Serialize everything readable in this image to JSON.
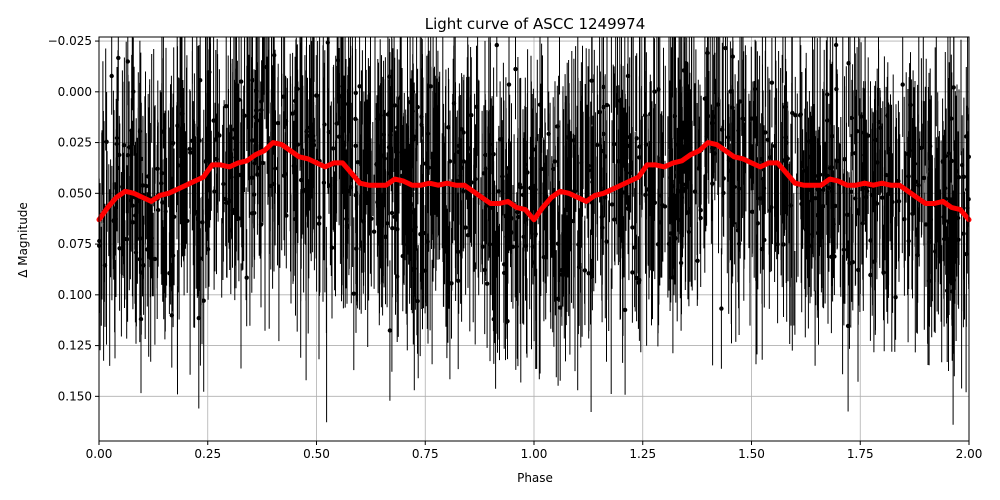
{
  "chart_data": {
    "type": "scatter",
    "title": "Light curve of ASCC 1249974",
    "xlabel": "Phase",
    "ylabel": "Δ Magnitude",
    "xlim": [
      0.0,
      2.0
    ],
    "ylim": [
      0.172,
      -0.027
    ],
    "y_inverted": true,
    "grid": true,
    "x_ticks": [
      "0.00",
      "0.25",
      "0.50",
      "0.75",
      "1.00",
      "1.25",
      "1.50",
      "1.75",
      "2.00"
    ],
    "x_tick_values": [
      0.0,
      0.25,
      0.5,
      0.75,
      1.0,
      1.25,
      1.5,
      1.75,
      2.0
    ],
    "y_ticks": [
      "−0.025",
      "0.000",
      "0.025",
      "0.050",
      "0.075",
      "0.100",
      "0.125",
      "0.150"
    ],
    "y_tick_values": [
      -0.025,
      0.0,
      0.025,
      0.05,
      0.075,
      0.1,
      0.125,
      0.15
    ],
    "series": [
      {
        "role": "observations",
        "style": "black points with vertical error bars",
        "color": "#000000",
        "approx_scatter_range": [
          -0.027,
          0.172
        ],
        "typical_errorbar": 0.03,
        "approx_count": 2000
      },
      {
        "role": "binned-model",
        "style": "thick line",
        "color": "#ff0000",
        "x": [
          0.0,
          0.02,
          0.04,
          0.06,
          0.08,
          0.1,
          0.12,
          0.14,
          0.16,
          0.18,
          0.2,
          0.22,
          0.24,
          0.26,
          0.28,
          0.3,
          0.32,
          0.34,
          0.36,
          0.38,
          0.4,
          0.42,
          0.44,
          0.46,
          0.48,
          0.5,
          0.52,
          0.54,
          0.56,
          0.58,
          0.6,
          0.62,
          0.64,
          0.66,
          0.68,
          0.7,
          0.72,
          0.74,
          0.76,
          0.78,
          0.8,
          0.82,
          0.84,
          0.86,
          0.88,
          0.9,
          0.92,
          0.94,
          0.96,
          0.98,
          1.0,
          1.02,
          1.04,
          1.06,
          1.08,
          1.1,
          1.12,
          1.14,
          1.16,
          1.18,
          1.2,
          1.22,
          1.24,
          1.26,
          1.28,
          1.3,
          1.32,
          1.34,
          1.36,
          1.38,
          1.4,
          1.42,
          1.44,
          1.46,
          1.48,
          1.5,
          1.52,
          1.54,
          1.56,
          1.58,
          1.6,
          1.62,
          1.64,
          1.66,
          1.68,
          1.7,
          1.72,
          1.74,
          1.76,
          1.78,
          1.8,
          1.82,
          1.84,
          1.86,
          1.88,
          1.9,
          1.92,
          1.94,
          1.96,
          1.98,
          2.0
        ],
        "y": [
          0.063,
          0.057,
          0.052,
          0.049,
          0.05,
          0.052,
          0.054,
          0.051,
          0.05,
          0.048,
          0.046,
          0.044,
          0.042,
          0.036,
          0.036,
          0.037,
          0.035,
          0.034,
          0.031,
          0.029,
          0.025,
          0.026,
          0.029,
          0.032,
          0.033,
          0.035,
          0.037,
          0.035,
          0.035,
          0.04,
          0.045,
          0.046,
          0.046,
          0.046,
          0.043,
          0.044,
          0.046,
          0.046,
          0.045,
          0.046,
          0.045,
          0.046,
          0.046,
          0.049,
          0.052,
          0.055,
          0.055,
          0.054,
          0.057,
          0.058,
          0.063,
          0.057,
          0.052,
          0.049,
          0.05,
          0.052,
          0.054,
          0.051,
          0.05,
          0.048,
          0.046,
          0.044,
          0.042,
          0.036,
          0.036,
          0.037,
          0.035,
          0.034,
          0.031,
          0.029,
          0.025,
          0.026,
          0.029,
          0.032,
          0.033,
          0.035,
          0.037,
          0.035,
          0.035,
          0.04,
          0.045,
          0.046,
          0.046,
          0.046,
          0.043,
          0.044,
          0.046,
          0.046,
          0.045,
          0.046,
          0.045,
          0.046,
          0.046,
          0.049,
          0.052,
          0.055,
          0.055,
          0.054,
          0.057,
          0.058,
          0.063
        ]
      }
    ]
  }
}
